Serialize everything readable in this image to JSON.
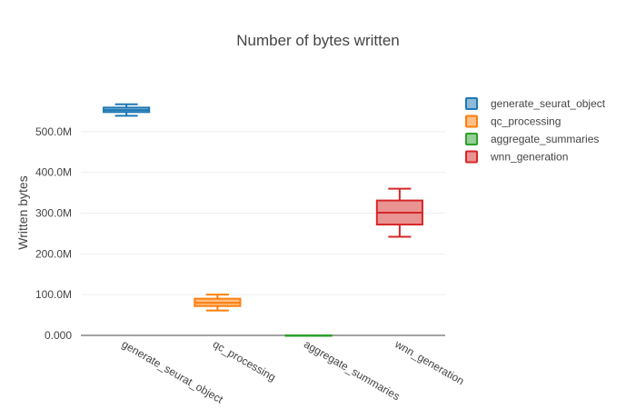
{
  "chart_data": {
    "type": "box",
    "title": "Number of bytes written",
    "xlabel": "",
    "ylabel": "Written bytes",
    "ylim": [
      0,
      600000000
    ],
    "yticks": [
      0,
      100000000,
      200000000,
      300000000,
      400000000,
      500000000
    ],
    "ytick_labels": [
      "0.000",
      "100.0M",
      "200.0M",
      "300.0M",
      "400.0M",
      "500.0M"
    ],
    "grid": true,
    "legend_position": "top-right",
    "categories": [
      "generate_seurat_object",
      "qc_processing",
      "aggregate_summaries",
      "wnn_generation"
    ],
    "series": [
      {
        "name": "generate_seurat_object",
        "color": "#1f77b4",
        "fill": "rgba(31,119,180,0.5)",
        "min": 539000000,
        "q1": 548000000,
        "median": 553000000,
        "q3": 559000000,
        "max": 567000000
      },
      {
        "name": "qc_processing",
        "color": "#ff7f0e",
        "fill": "rgba(255,127,14,0.5)",
        "min": 61000000,
        "q1": 72000000,
        "median": 80000000,
        "q3": 90000000,
        "max": 100000000
      },
      {
        "name": "aggregate_summaries",
        "color": "#2ca02c",
        "fill": "rgba(44,160,44,0.5)",
        "min": 0,
        "q1": 0,
        "median": 0,
        "q3": 0,
        "max": 0
      },
      {
        "name": "wnn_generation",
        "color": "#d62728",
        "fill": "rgba(214,39,40,0.5)",
        "min": 242000000,
        "q1": 272000000,
        "median": 301000000,
        "q3": 331000000,
        "max": 360000000
      }
    ]
  }
}
